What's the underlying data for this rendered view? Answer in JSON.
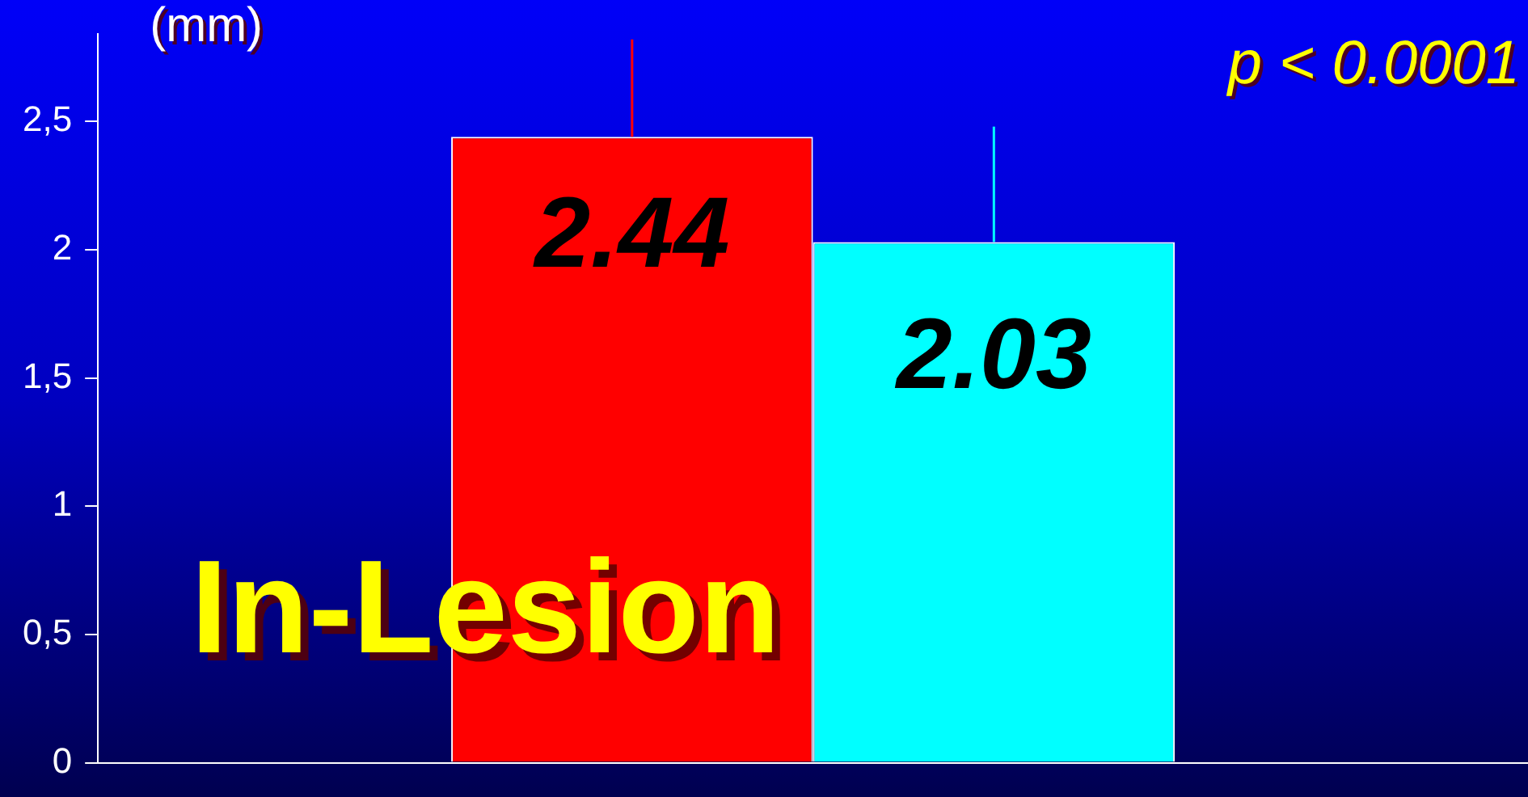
{
  "chart_data": {
    "type": "bar",
    "categories": [
      null
    ],
    "series": [
      {
        "color": "#ff0000",
        "values": [
          2.44
        ],
        "errors": [
          0.38
        ]
      },
      {
        "color": "#00ffff",
        "values": [
          2.03
        ],
        "errors": [
          0.45
        ]
      }
    ],
    "ylim": [
      0,
      2.84
    ],
    "yticks": [
      0,
      {
        "value": 0.5,
        "label": "0,5"
      },
      1,
      {
        "value": 1.5,
        "label": "1,5"
      },
      2,
      {
        "value": 2.5,
        "label": "2,5"
      }
    ],
    "grid": false,
    "legend": false,
    "data_labels": true,
    "tick_labels": "y",
    "annotations": [
      "(mm)",
      "p < 0.0001",
      "In-Lesion"
    ]
  }
}
